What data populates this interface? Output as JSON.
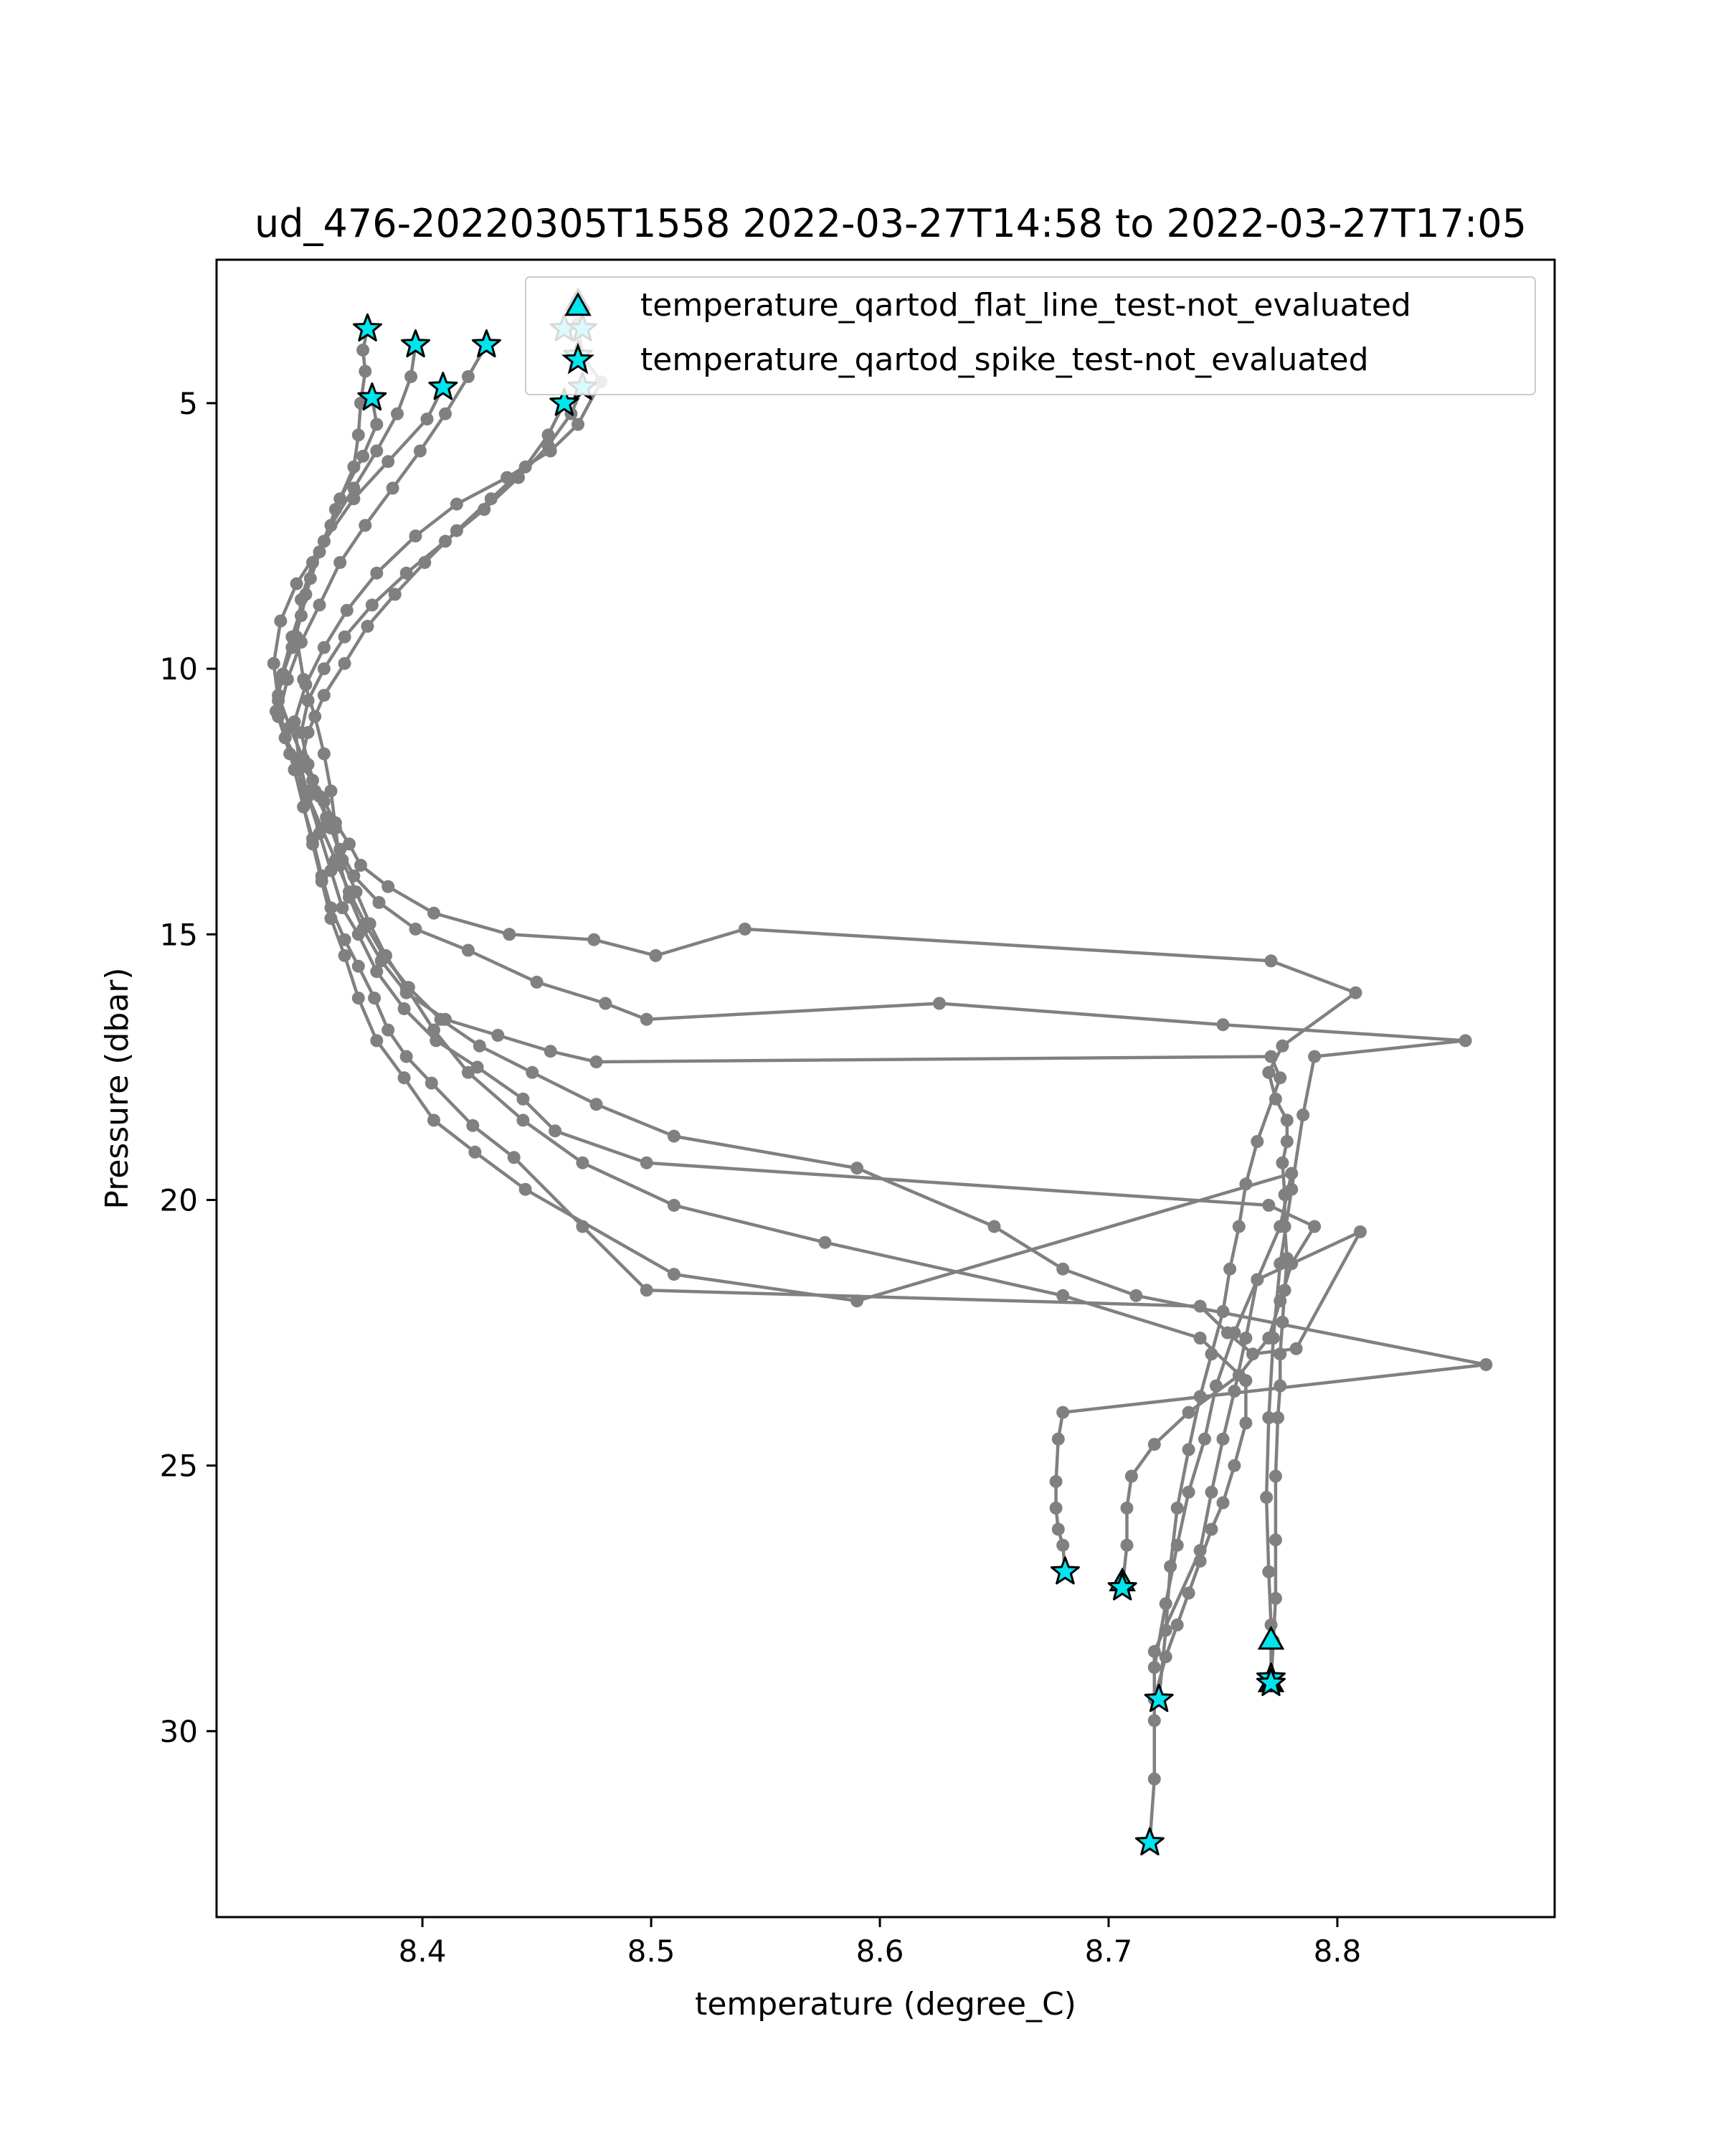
{
  "chart_data": {
    "type": "line",
    "title": "ud_476-20220305T1558 2022-03-27T14:58 to 2022-03-27T17:05",
    "xlabel": "temperature (degree_C)",
    "ylabel": "Pressure (dbar)",
    "xlim": [
      8.31,
      8.895
    ],
    "ylim": [
      33.5,
      2.3
    ],
    "y_inverted": true,
    "grid": false,
    "xticks": [
      8.4,
      8.5,
      8.6,
      8.7,
      8.8
    ],
    "xtick_labels": [
      "8.4",
      "8.5",
      "8.6",
      "8.7",
      "8.8"
    ],
    "yticks": [
      5,
      10,
      15,
      20,
      25,
      30
    ],
    "ytick_labels": [
      "5",
      "10",
      "15",
      "20",
      "25",
      "30"
    ],
    "line_color": "#808080",
    "marker_face_color": "#00e5ee",
    "marker_edge_color": "#000000",
    "legend": {
      "placement": "top-right",
      "entries": [
        {
          "marker": "triangle",
          "label": "temperature_qartod_flat_line_test-not_evaluated"
        },
        {
          "marker": "star",
          "label": "temperature_qartod_spike_test-not_evaluated"
        }
      ]
    },
    "series": [
      {
        "x": [
          8.376,
          8.374,
          8.375,
          8.373,
          8.372,
          8.37,
          8.362,
          8.355,
          8.349,
          8.343,
          8.338,
          8.336,
          8.34,
          8.345,
          8.352,
          8.357,
          8.362,
          8.368,
          8.373,
          8.385,
          8.405,
          8.438,
          8.475,
          8.502,
          8.541,
          8.771,
          8.808,
          8.776,
          8.77,
          8.773,
          8.778,
          8.778,
          8.776,
          8.777,
          8.777,
          8.778,
          8.777,
          8.776,
          8.775,
          8.775,
          8.774,
          8.773,
          8.773,
          8.773,
          8.772,
          8.771
        ],
        "y": [
          3.6,
          4.0,
          4.4,
          5.0,
          5.6,
          6.2,
          7.0,
          7.8,
          8.6,
          9.4,
          10.2,
          10.8,
          11.3,
          11.7,
          12.1,
          12.5,
          12.9,
          13.3,
          13.7,
          14.1,
          14.6,
          15.0,
          15.1,
          15.4,
          14.9,
          15.5,
          16.1,
          17.1,
          17.6,
          18.1,
          18.5,
          18.9,
          19.3,
          19.9,
          20.5,
          21.1,
          21.7,
          22.3,
          22.9,
          23.5,
          24.1,
          25.2,
          26.4,
          27.5,
          28.3,
          29.1
        ]
      },
      {
        "x": [
          8.378,
          8.38,
          8.374,
          8.364,
          8.357,
          8.351,
          8.347,
          8.343,
          8.339,
          8.337,
          8.342,
          8.348,
          8.353,
          8.358,
          8.364,
          8.37,
          8.381,
          8.397,
          8.42,
          8.45,
          8.48,
          8.498,
          8.626,
          8.75,
          8.856,
          8.79,
          8.785,
          8.78,
          8.775,
          8.772,
          8.77,
          8.769,
          8.77,
          8.771,
          8.771
        ],
        "y": [
          4.9,
          5.4,
          6.0,
          6.8,
          7.6,
          8.3,
          9.0,
          9.6,
          10.1,
          10.5,
          11.1,
          11.7,
          12.3,
          12.8,
          13.4,
          13.9,
          14.4,
          14.9,
          15.3,
          15.9,
          16.3,
          16.6,
          16.3,
          16.7,
          17.0,
          17.3,
          18.4,
          19.8,
          21.2,
          22.6,
          24.1,
          25.6,
          27.0,
          28.0,
          29.0
        ]
      },
      {
        "x": [
          8.397,
          8.395,
          8.389,
          8.38,
          8.37,
          8.36,
          8.352,
          8.347,
          8.345,
          8.348,
          8.353,
          8.357,
          8.36,
          8.362,
          8.364,
          8.368,
          8.374,
          8.382,
          8.393,
          8.41,
          8.433,
          8.456,
          8.476,
          8.771,
          8.775,
          8.765,
          8.76,
          8.757,
          8.753,
          8.75,
          8.745,
          8.74,
          8.735,
          8.73,
          8.727,
          8.725,
          8.722
        ],
        "y": [
          3.9,
          4.5,
          5.2,
          5.9,
          6.6,
          7.3,
          8.0,
          8.7,
          9.4,
          10.2,
          10.9,
          11.6,
          12.3,
          13.0,
          13.7,
          14.3,
          14.9,
          15.5,
          16.1,
          16.6,
          16.9,
          17.2,
          17.4,
          17.3,
          17.7,
          18.9,
          19.7,
          20.5,
          21.3,
          22.1,
          22.9,
          23.7,
          24.7,
          25.8,
          26.9,
          28.1,
          29.4
        ]
      },
      {
        "x": [
          8.409,
          8.402,
          8.385,
          8.37,
          8.357,
          8.345,
          8.338,
          8.335,
          8.337,
          8.34,
          8.344,
          8.348,
          8.352,
          8.356,
          8.36,
          8.366,
          8.372,
          8.379,
          8.385,
          8.393,
          8.404,
          8.422,
          8.44,
          8.47,
          8.498,
          8.74,
          8.752,
          8.763,
          8.782,
          8.81,
          8.765,
          8.76,
          8.755,
          8.75,
          8.745,
          8.74,
          8.72,
          8.72,
          8.72,
          8.718
        ],
        "y": [
          4.7,
          5.3,
          6.1,
          6.8,
          7.6,
          8.4,
          9.1,
          9.9,
          10.6,
          11.3,
          11.9,
          12.6,
          13.2,
          13.9,
          14.5,
          15.1,
          15.6,
          16.2,
          16.8,
          17.3,
          17.8,
          18.6,
          19.2,
          20.5,
          21.7,
          22.0,
          22.5,
          22.9,
          22.8,
          20.6,
          21.5,
          22.6,
          23.6,
          24.5,
          25.5,
          26.6,
          28.5,
          29.8,
          30.9,
          32.1
        ]
      },
      {
        "x": [
          8.428,
          8.42,
          8.41,
          8.399,
          8.387,
          8.375,
          8.364,
          8.355,
          8.347,
          8.341,
          8.337,
          8.342,
          8.349,
          8.356,
          8.362,
          8.368,
          8.375,
          8.383,
          8.394,
          8.408,
          8.425,
          8.448,
          8.476,
          8.51,
          8.59,
          8.65,
          8.68,
          8.712,
          8.865,
          8.68,
          8.678,
          8.677,
          8.677,
          8.678,
          8.68,
          8.681
        ],
        "y": [
          3.9,
          4.5,
          5.2,
          5.9,
          6.6,
          7.3,
          8.0,
          8.8,
          9.5,
          10.2,
          10.9,
          11.6,
          12.3,
          13.0,
          13.6,
          14.2,
          14.8,
          15.4,
          16.0,
          16.6,
          17.1,
          17.6,
          18.2,
          18.8,
          19.4,
          20.5,
          21.3,
          21.8,
          23.1,
          24.0,
          24.5,
          25.3,
          25.8,
          26.2,
          26.5,
          27.0
        ]
      },
      {
        "x": [
          8.462,
          8.455,
          8.445,
          8.43,
          8.415,
          8.401,
          8.388,
          8.376,
          8.366,
          8.357,
          8.35,
          8.346,
          8.348,
          8.352,
          8.356,
          8.36,
          8.366,
          8.372,
          8.38,
          8.392,
          8.405,
          8.423,
          8.445,
          8.51,
          8.59,
          8.78,
          8.775,
          8.765,
          8.755,
          8.747,
          8.742,
          8.735,
          8.73,
          8.725,
          8.72
        ],
        "y": [
          5.0,
          5.6,
          6.2,
          6.8,
          7.4,
          8.0,
          8.6,
          9.2,
          9.9,
          10.5,
          11.2,
          11.9,
          12.6,
          13.3,
          14.0,
          14.7,
          15.4,
          16.2,
          17.0,
          17.7,
          18.5,
          19.1,
          19.8,
          21.4,
          21.9,
          19.5,
          20.5,
          21.5,
          22.5,
          23.5,
          24.5,
          25.5,
          26.5,
          27.6,
          28.8
        ]
      },
      {
        "x": [
          8.47,
          8.465,
          8.455,
          8.442,
          8.427,
          8.41,
          8.393,
          8.378,
          8.366,
          8.357,
          8.35,
          8.347,
          8.35,
          8.355,
          8.36,
          8.365,
          8.371,
          8.377,
          8.384,
          8.393,
          8.405,
          8.42,
          8.444,
          8.47,
          8.51,
          8.576,
          8.68,
          8.74,
          8.76,
          8.76,
          8.755,
          8.75,
          8.745,
          8.74,
          8.735,
          8.73,
          8.725,
          8.72
        ],
        "y": [
          4.7,
          5.2,
          5.8,
          6.4,
          7.0,
          7.6,
          8.2,
          8.8,
          9.4,
          10.0,
          10.6,
          11.2,
          11.8,
          12.4,
          13.0,
          13.6,
          14.2,
          14.8,
          15.4,
          16.0,
          16.8,
          17.6,
          18.5,
          19.3,
          20.1,
          20.8,
          21.8,
          22.6,
          23.4,
          24.2,
          25.0,
          25.7,
          26.2,
          26.8,
          27.4,
          28.0,
          28.6,
          29.4
        ]
      },
      {
        "x": [
          8.468,
          8.47,
          8.478,
          8.468,
          8.456,
          8.437,
          8.415,
          8.397,
          8.38,
          8.367,
          8.357,
          8.349,
          8.344,
          8.346,
          8.35,
          8.355,
          8.36,
          8.365,
          8.372,
          8.38,
          8.392,
          8.406,
          8.424,
          8.444,
          8.458,
          8.498,
          8.77,
          8.79,
          8.78,
          8.775,
          8.77,
          8.757,
          8.735,
          8.72,
          8.71,
          8.708,
          8.708,
          8.706
        ],
        "y": [
          3.5,
          4.1,
          4.6,
          5.4,
          5.9,
          6.4,
          6.9,
          7.5,
          8.2,
          8.9,
          9.6,
          10.3,
          11.0,
          11.7,
          12.4,
          13.1,
          13.8,
          14.5,
          15.0,
          15.7,
          16.4,
          17.0,
          17.5,
          18.1,
          18.7,
          19.3,
          20.1,
          20.5,
          21.2,
          21.9,
          22.6,
          23.3,
          24.0,
          24.6,
          25.2,
          25.8,
          26.5,
          27.3
        ]
      }
    ],
    "spike_flag_points": {
      "x": [
        8.376,
        8.397,
        8.428,
        8.462,
        8.47,
        8.468,
        8.378,
        8.409,
        8.462,
        8.47,
        8.681,
        8.706,
        8.722,
        8.771,
        8.771,
        8.718
      ],
      "y": [
        3.6,
        3.9,
        3.9,
        3.6,
        3.6,
        4.1,
        4.9,
        4.7,
        5.0,
        4.7,
        27.0,
        27.3,
        29.4,
        29.0,
        29.1,
        32.1
      ]
    },
    "flat_line_flag_points": {
      "x": [
        8.468,
        8.771,
        8.771,
        8.706
      ],
      "y": [
        3.1,
        28.3,
        29.1,
        27.2
      ]
    }
  }
}
